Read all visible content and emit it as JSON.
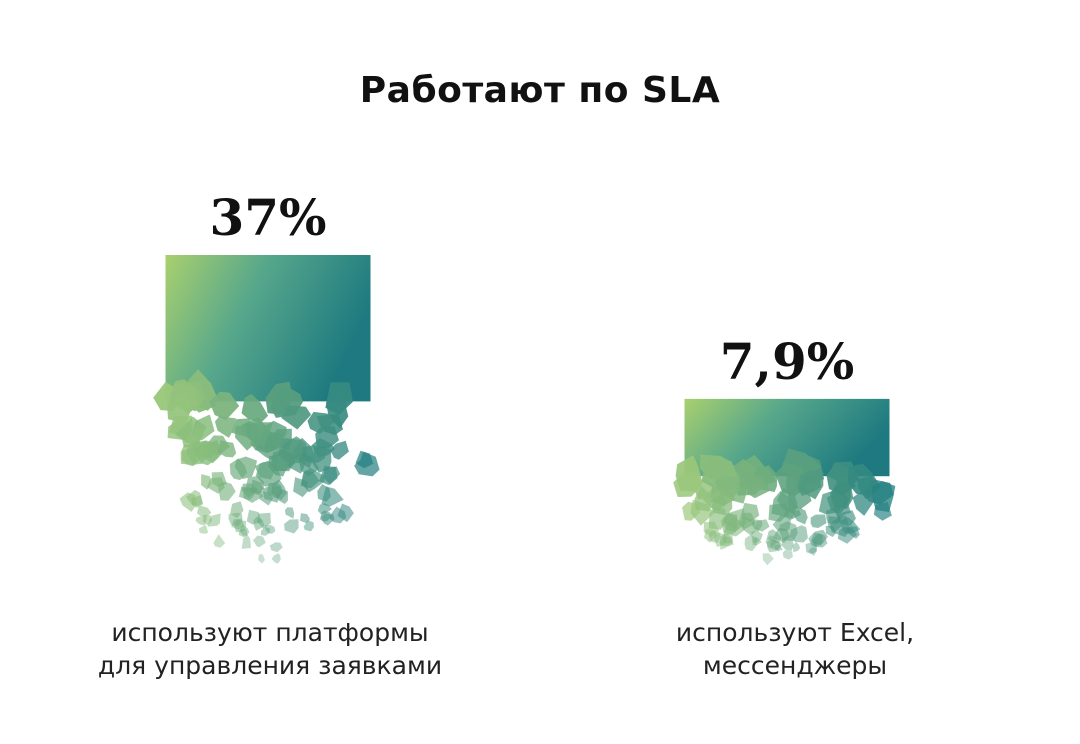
{
  "chart_data": {
    "type": "bar",
    "title": "Работают по SLA",
    "categories": [
      "используют платформы\nдля управления заявками",
      "используют Excel,\nмессенджеры"
    ],
    "values": [
      37,
      7.9
    ],
    "value_labels": [
      "37%",
      "7,9%"
    ],
    "colors": {
      "start": "#9cc96b",
      "end": "#1f7b7e"
    }
  }
}
